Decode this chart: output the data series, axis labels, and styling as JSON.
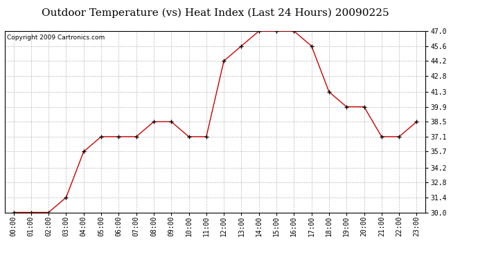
{
  "title": "Outdoor Temperature (vs) Heat Index (Last 24 Hours) 20090225",
  "copyright_text": "Copyright 2009 Cartronics.com",
  "x_labels": [
    "00:00",
    "01:00",
    "02:00",
    "03:00",
    "04:00",
    "05:00",
    "06:00",
    "07:00",
    "08:00",
    "09:00",
    "10:00",
    "11:00",
    "12:00",
    "13:00",
    "14:00",
    "15:00",
    "16:00",
    "17:00",
    "18:00",
    "19:00",
    "20:00",
    "21:00",
    "22:00",
    "23:00"
  ],
  "y_values": [
    30.0,
    30.0,
    30.0,
    31.4,
    35.7,
    37.1,
    37.1,
    37.1,
    38.5,
    38.5,
    37.1,
    37.1,
    44.2,
    45.6,
    47.0,
    47.0,
    47.0,
    45.6,
    41.3,
    39.9,
    39.9,
    37.1,
    37.1,
    38.5
  ],
  "y_min": 30.0,
  "y_max": 47.0,
  "y_ticks": [
    30.0,
    31.4,
    32.8,
    34.2,
    35.7,
    37.1,
    38.5,
    39.9,
    41.3,
    42.8,
    44.2,
    45.6,
    47.0
  ],
  "line_color": "#cc0000",
  "marker_color": "#000000",
  "background_color": "#ffffff",
  "grid_color": "#bbbbbb",
  "title_fontsize": 11,
  "tick_fontsize": 7,
  "copyright_fontsize": 6.5
}
